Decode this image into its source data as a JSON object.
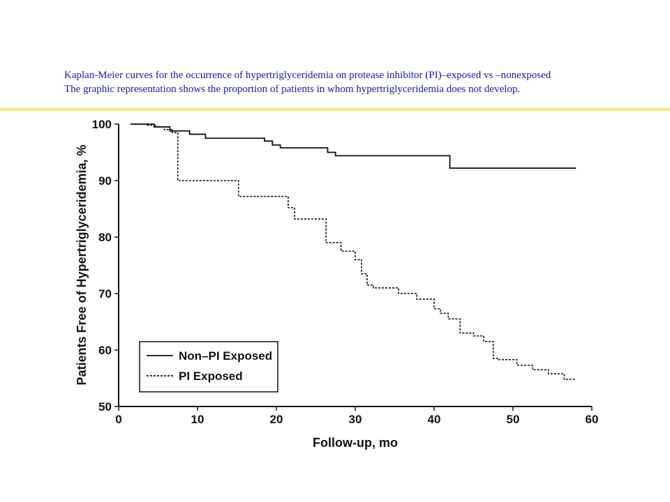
{
  "caption": {
    "line1": "Kaplan-Meier curves for the occurrence of hypertriglyceridemia on protease inhibitor (PI)–exposed vs –nonexposed",
    "line2": "The graphic representation shows the proportion of patients in whom hypertriglyceridemia does not develop."
  },
  "colors": {
    "caption": "#1a1a9a",
    "rule": "#ffe680",
    "ink": "#111111"
  },
  "chart_data": {
    "type": "line",
    "xlabel": "Follow-up, mo",
    "ylabel": "Patients Free of Hypertriglyceridemia, %",
    "xlim": [
      0,
      60
    ],
    "ylim": [
      50,
      100
    ],
    "xticks": [
      0,
      10,
      20,
      30,
      40,
      50,
      60
    ],
    "yticks": [
      50,
      60,
      70,
      80,
      90,
      100
    ],
    "grid": false,
    "legend_position": "bottom-left",
    "series": [
      {
        "name": "Non–PI Exposed",
        "style": "solid",
        "x": [
          1.5,
          4.5,
          6.5,
          9,
          11,
          18.5,
          19.5,
          20.5,
          26.5,
          27.5,
          42,
          58
        ],
        "y": [
          100,
          99.5,
          98.8,
          98.2,
          97.5,
          97.0,
          96.3,
          95.8,
          95.0,
          94.4,
          92.2,
          92.2
        ]
      },
      {
        "name": "PI Exposed",
        "style": "dashed",
        "x": [
          1.5,
          3.5,
          4.8,
          5.8,
          6.8,
          7.5,
          15.2,
          21.5,
          22.3,
          26.3,
          28.2,
          30,
          30.8,
          31.5,
          32.3,
          35.5,
          37.8,
          40,
          40.8,
          41.8,
          43.3,
          45,
          46.3,
          47.5,
          48.2,
          50.5,
          52.5,
          54.5,
          56.5,
          58
        ],
        "y": [
          100,
          99.8,
          99.5,
          99.0,
          98.5,
          90,
          87.2,
          85.2,
          83.2,
          79,
          77.5,
          76,
          73.5,
          71.5,
          71,
          70,
          69,
          67.3,
          66.5,
          65.5,
          63,
          62.5,
          61.5,
          58.5,
          58.3,
          57.3,
          56.5,
          55.8,
          54.8,
          54.8
        ]
      }
    ]
  }
}
